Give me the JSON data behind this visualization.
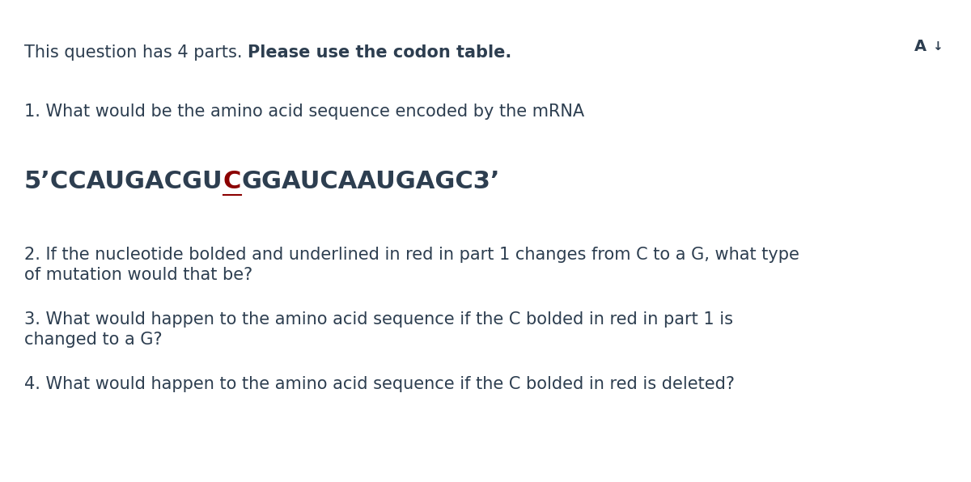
{
  "background_color": "#ffffff",
  "text_color": "#2d3e50",
  "red_color": "#8b0000",
  "intro_normal": "This question has 4 parts. ",
  "intro_bold": "Please use the codon table.",
  "q1_text": "1. What would be the amino acid sequence encoded by the mRNA",
  "mrna_before": "5’CCAUGACGU",
  "mrna_red": "C",
  "mrna_after": "GGAUCAAUGAGC3’",
  "q2_line1": "2. If the nucleotide bolded and underlined in red in part 1 changes from C to a G, what type",
  "q2_line2": "of mutation would that be?",
  "q3_line1": "3. What would happen to the amino acid sequence if the C bolded in red in part 1 is",
  "q3_line2": "changed to a G?",
  "q4_text": "4. What would happen to the amino acid sequence if the C bolded in red is deleted?",
  "fs_intro": 15,
  "fs_mrna": 22,
  "fs_q": 15,
  "fig_width": 12.0,
  "fig_height": 5.96,
  "dpi": 100
}
